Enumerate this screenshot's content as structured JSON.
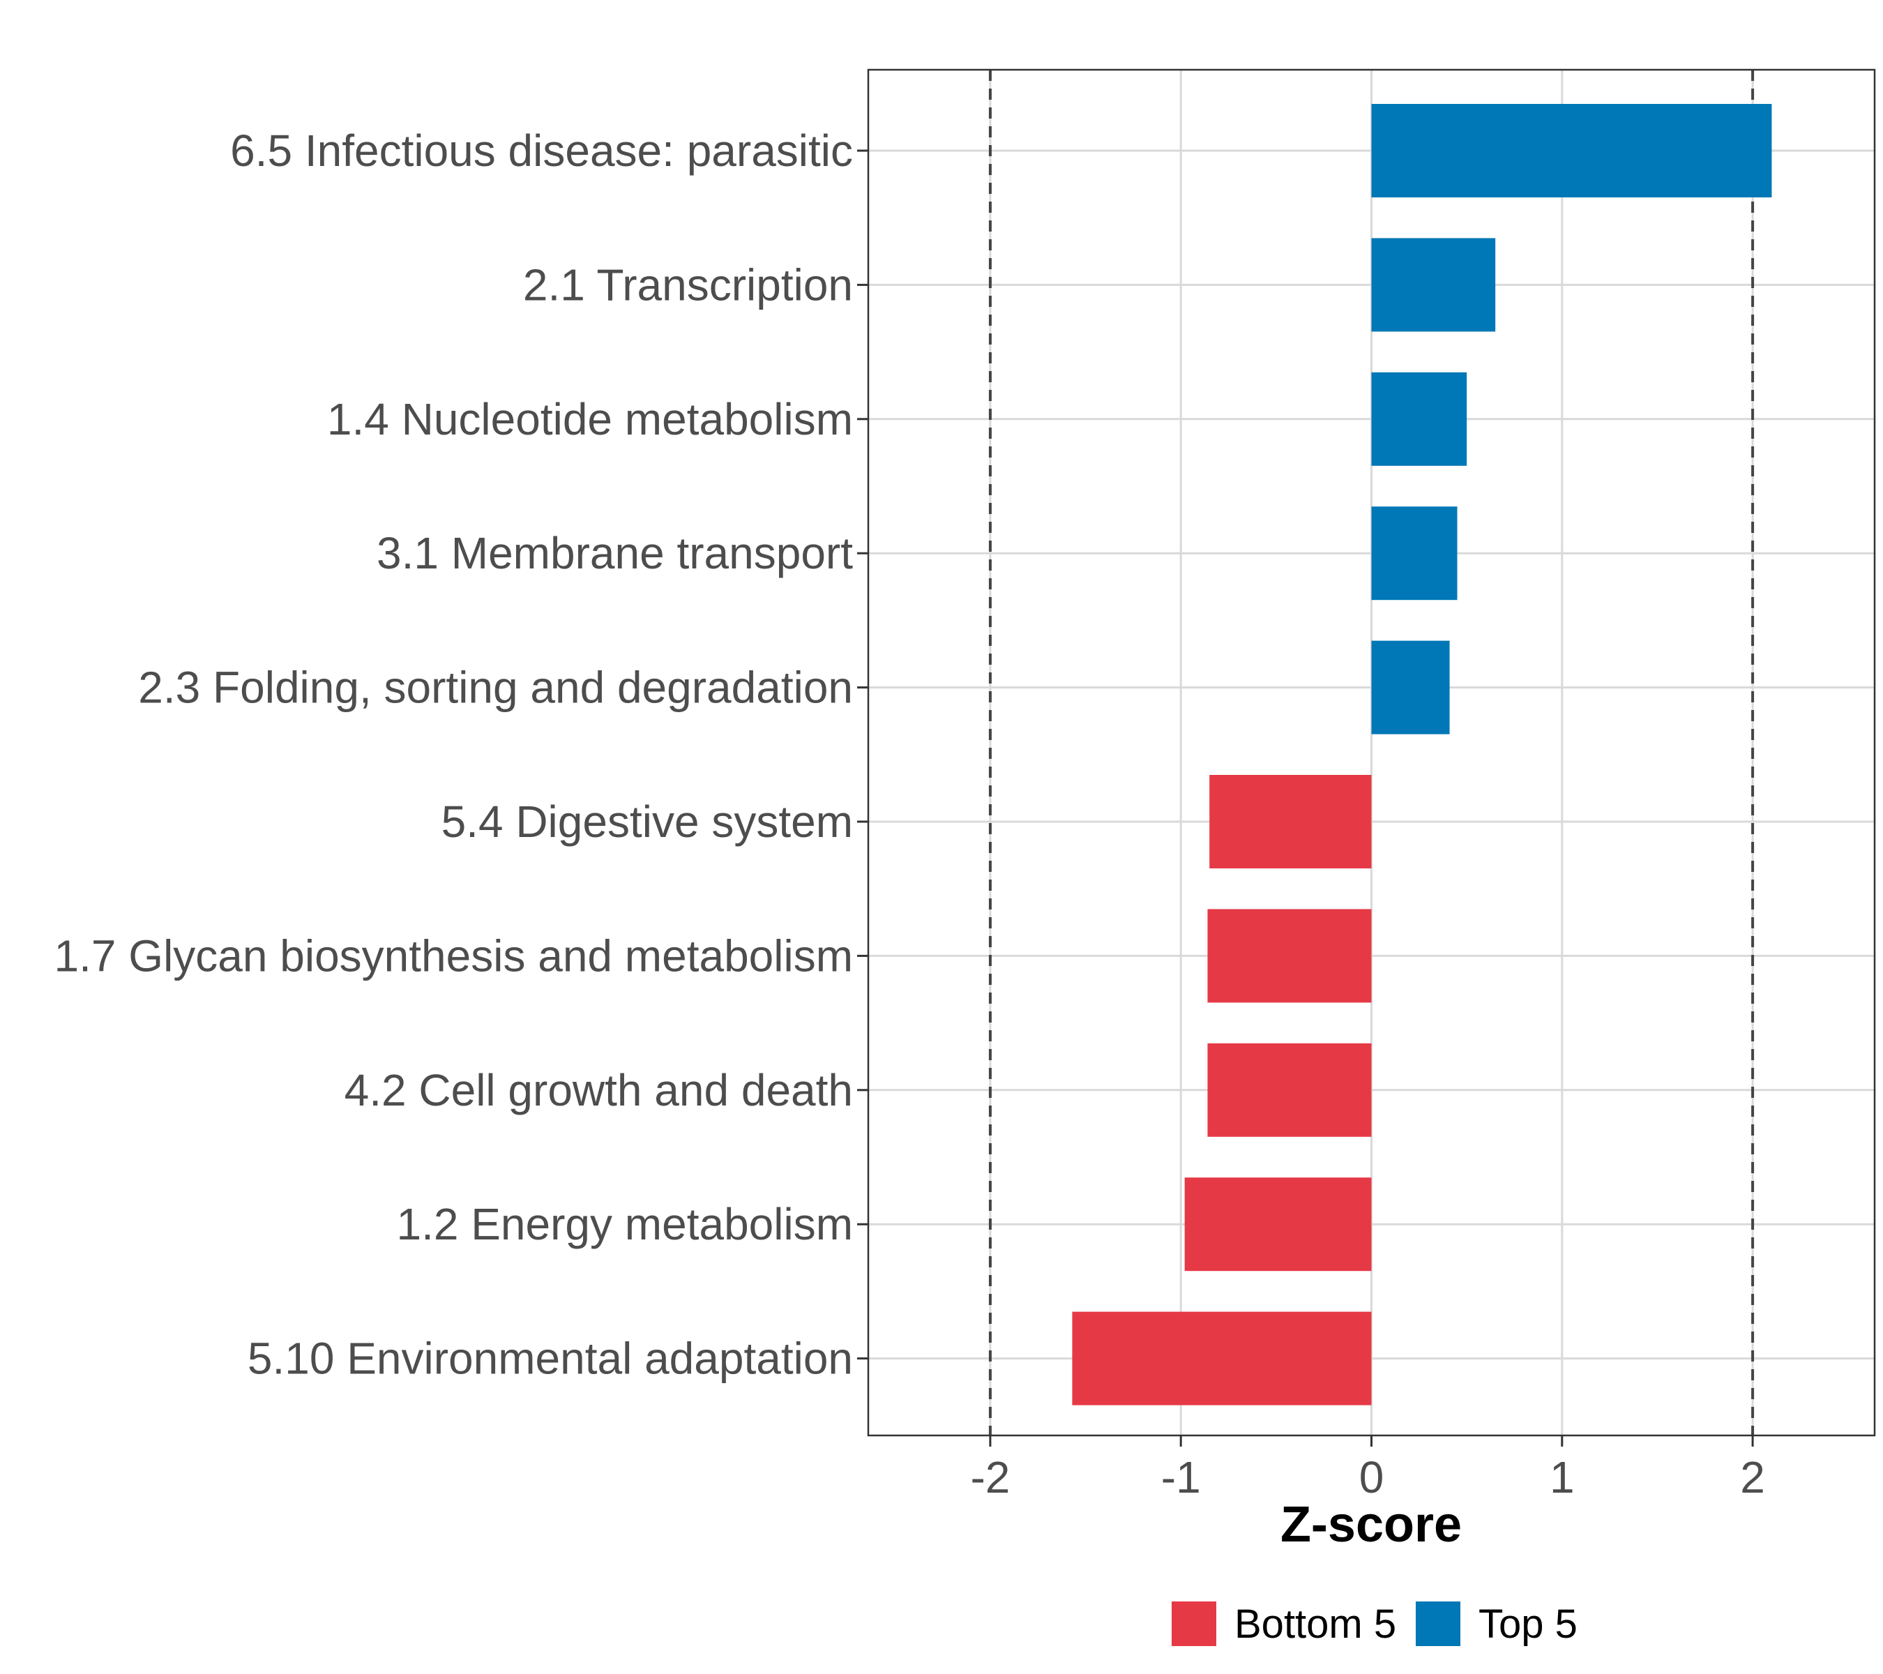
{
  "chart_data": {
    "type": "bar",
    "orientation": "horizontal",
    "xlabel": "Z-score",
    "xlim": [
      -2.64,
      2.64
    ],
    "x_ticks": [
      -2,
      -1,
      0,
      1,
      2
    ],
    "x_tick_labels": [
      "-2",
      "-1",
      "0",
      "1",
      "2"
    ],
    "reference_lines": [
      -2,
      2
    ],
    "grid": true,
    "categories": [
      "6.5 Infectious disease: parasitic",
      "2.1 Transcription",
      "1.4 Nucleotide metabolism",
      "3.1 Membrane transport",
      "2.3 Folding, sorting and degradation",
      "5.4 Digestive system",
      "1.7 Glycan biosynthesis and metabolism",
      "4.2 Cell growth and death",
      "1.2 Energy metabolism",
      "5.10 Environmental adaptation"
    ],
    "values": [
      2.1,
      0.65,
      0.5,
      0.45,
      0.41,
      -0.85,
      -0.86,
      -0.86,
      -0.98,
      -1.57
    ],
    "groups": [
      "Top 5",
      "Top 5",
      "Top 5",
      "Top 5",
      "Top 5",
      "Bottom 5",
      "Bottom 5",
      "Bottom 5",
      "Bottom 5",
      "Bottom 5"
    ],
    "legend": {
      "position": "bottom",
      "entries": [
        {
          "label": "Bottom 5",
          "color": "#E63946"
        },
        {
          "label": "Top 5",
          "color": "#0077B6"
        }
      ]
    }
  }
}
